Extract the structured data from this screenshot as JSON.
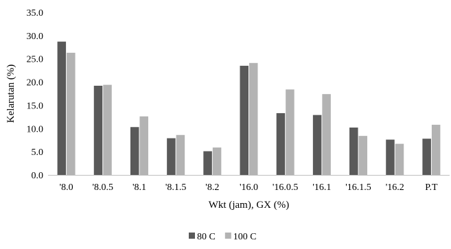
{
  "chart_data": {
    "type": "bar",
    "title": "",
    "xlabel": "Wkt (jam), GX (%)",
    "ylabel": "Kelarutan (%)",
    "ylim": [
      0,
      35
    ],
    "yticks": [
      "0.0",
      "5.0",
      "10.0",
      "15.0",
      "20.0",
      "25.0",
      "30.0",
      "35.0"
    ],
    "categories": [
      "'8.0",
      "'8.0.5",
      "'8.1",
      "'8.1.5",
      "'8.2",
      "'16.0",
      "'16.0.5",
      "'16.1",
      "'16.1.5",
      "'16.2",
      "P.T"
    ],
    "series": [
      {
        "name": "80 C",
        "color": "#595959",
        "values": [
          28.7,
          19.2,
          10.3,
          7.9,
          5.1,
          23.5,
          13.3,
          12.9,
          10.2,
          7.6,
          7.8
        ]
      },
      {
        "name": "100 C",
        "color": "#b3b3b3",
        "values": [
          26.3,
          19.4,
          12.6,
          8.6,
          5.9,
          24.1,
          18.4,
          17.4,
          8.4,
          6.7,
          10.8
        ]
      }
    ],
    "grid": false,
    "legend_position": "bottom"
  }
}
